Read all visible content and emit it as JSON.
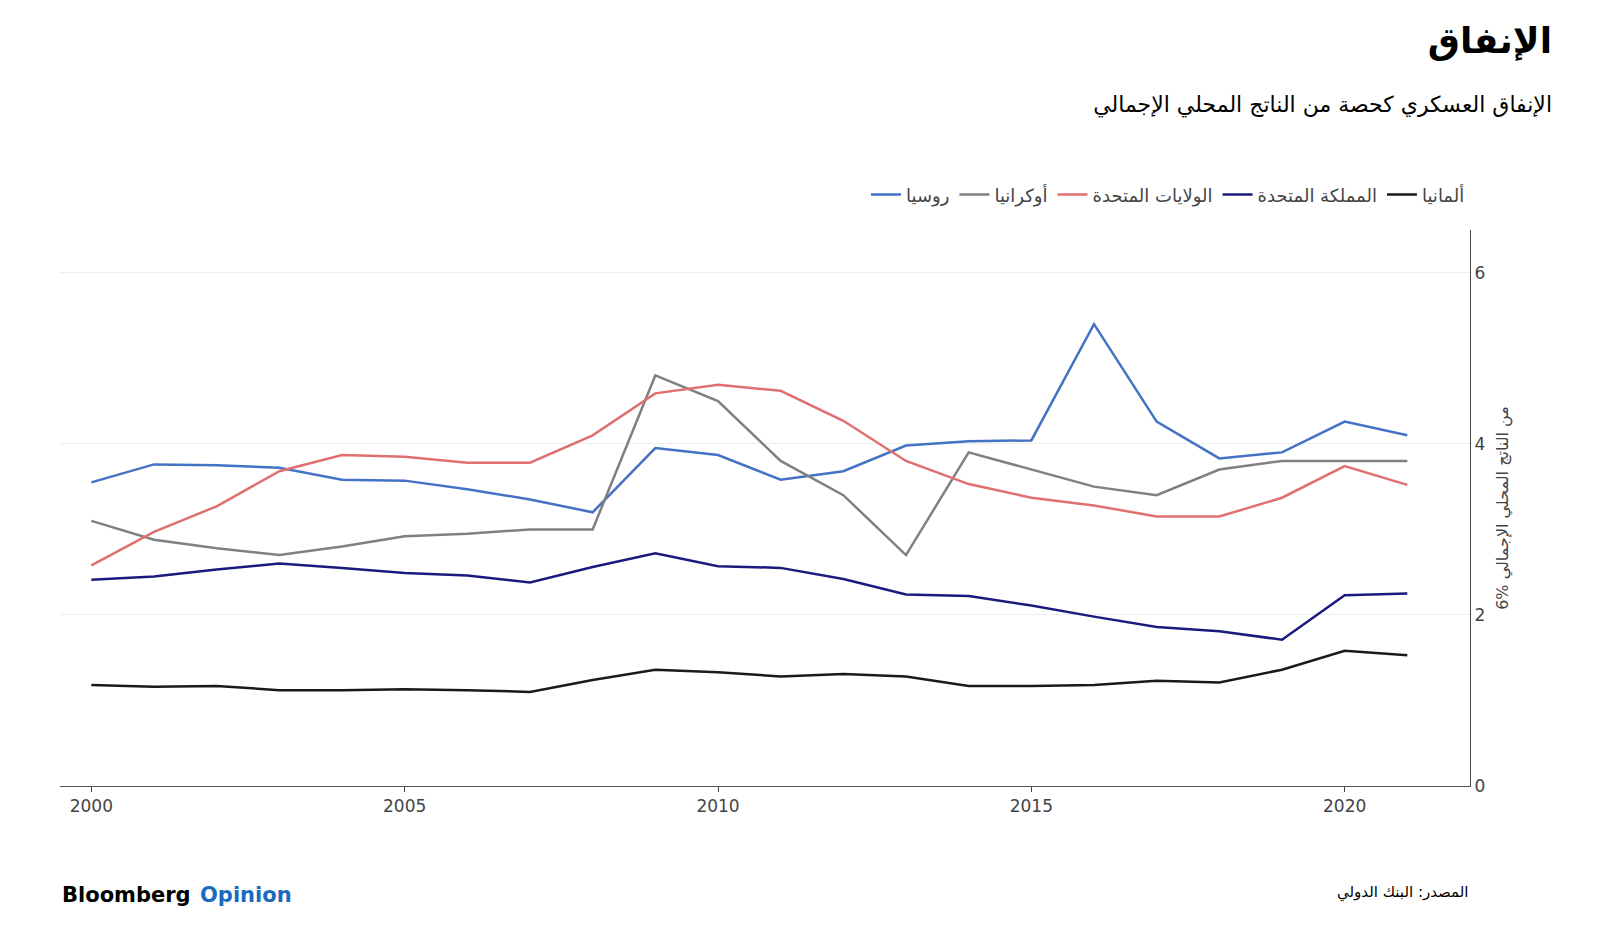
{
  "chart_data": {
    "type": "line",
    "title": "الإنفاق",
    "subtitle": "الإنفاق العسكري كحصة من الناتج المحلي الإجمالي",
    "ylabel": "6% من الناتج المحلي الإجمالي",
    "source": "المصدر: البنك الدولي",
    "annotations": [
      {
        "text": "Bloomberg"
      },
      {
        "text": "Opinion",
        "color": "#1a6bbf"
      }
    ],
    "x": [
      2000,
      2001,
      2002,
      2003,
      2004,
      2005,
      2006,
      2007,
      2008,
      2009,
      2010,
      2011,
      2012,
      2013,
      2014,
      2015,
      2016,
      2017,
      2018,
      2019,
      2020,
      2021
    ],
    "series": [
      {
        "name": "روسيا",
        "color": "#4472C4",
        "values": [
          3.55,
          3.76,
          3.75,
          3.72,
          3.58,
          3.57,
          3.47,
          3.35,
          3.2,
          3.95,
          3.87,
          3.58,
          3.68,
          3.98,
          4.03,
          4.04,
          5.4,
          4.26,
          3.83,
          3.9,
          4.26,
          4.1
        ]
      },
      {
        "name": "أوكرانيا",
        "color": "#808080",
        "values": [
          3.1,
          2.88,
          2.78,
          2.7,
          2.8,
          2.92,
          2.95,
          3.0,
          3.0,
          4.8,
          4.5,
          3.8,
          3.4,
          2.7,
          3.9,
          3.7,
          3.5,
          3.4,
          3.7,
          3.8,
          3.8,
          3.8
        ]
      },
      {
        "name": "الولايات المتحدة",
        "color": "#E07070",
        "values": [
          2.58,
          2.97,
          3.27,
          3.68,
          3.87,
          3.85,
          3.78,
          3.78,
          4.1,
          4.59,
          4.69,
          4.62,
          4.27,
          3.8,
          3.53,
          3.37,
          3.28,
          3.15,
          3.15,
          3.37,
          3.74,
          3.52
        ]
      },
      {
        "name": "المملكة المتحدة",
        "color": "#1a1a7e",
        "values": [
          2.41,
          2.45,
          2.53,
          2.6,
          2.55,
          2.49,
          2.46,
          2.38,
          2.56,
          2.72,
          2.57,
          2.55,
          2.42,
          2.24,
          2.22,
          2.11,
          1.98,
          1.86,
          1.81,
          1.71,
          2.23,
          2.25
        ]
      },
      {
        "name": "ألمانيا",
        "color": "#1a1a1a",
        "values": [
          1.18,
          1.16,
          1.17,
          1.12,
          1.12,
          1.13,
          1.12,
          1.1,
          1.24,
          1.36,
          1.33,
          1.28,
          1.31,
          1.28,
          1.17,
          1.17,
          1.18,
          1.23,
          1.21,
          1.36,
          1.58,
          1.53
        ]
      }
    ],
    "xlim": [
      1999.5,
      2022
    ],
    "xticks": [
      2000,
      2005,
      2010,
      2015,
      2020
    ],
    "ylim": [
      0,
      6.5
    ],
    "yticks": [
      0,
      2,
      4,
      6
    ],
    "grid": "y",
    "legend": "top"
  }
}
